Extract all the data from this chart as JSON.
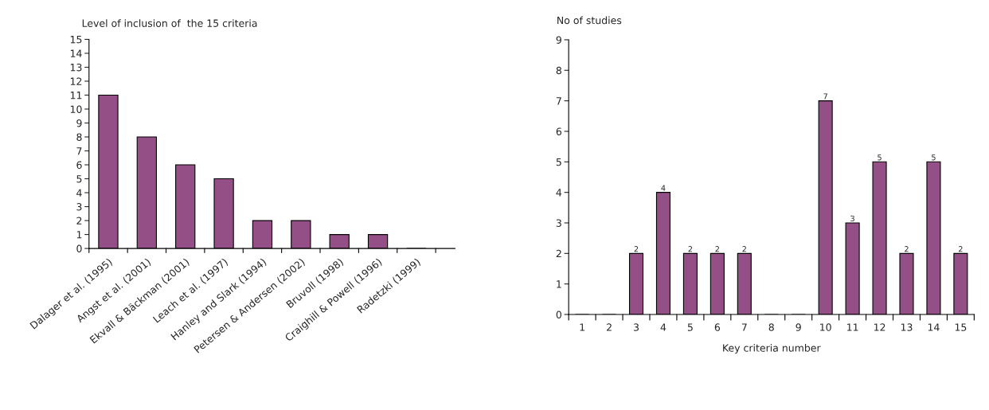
{
  "chart_data": [
    {
      "type": "bar",
      "ylabel": "Level of inclusion of  the 15 criteria",
      "categories": [
        "Dalager et al. (1995)",
        "Angst et al. (2001)",
        "Ekvall & Bäckman (2001)",
        "Leach et al. (1997)",
        "Hanley and Slark (1994)",
        "Petersen & Andersen (2002)",
        "Bruvoll (1998)",
        "Craighill & Powell (1996)",
        "Radetzki (1999)"
      ],
      "values": [
        11,
        8,
        6,
        5,
        2,
        2,
        1,
        1,
        0
      ],
      "color": "#954f87",
      "ylim": [
        0,
        15
      ],
      "yticks": [
        0,
        1,
        2,
        3,
        4,
        5,
        6,
        7,
        8,
        9,
        10,
        11,
        12,
        13,
        14,
        15
      ],
      "grid": false,
      "legend": false
    },
    {
      "type": "bar",
      "ylabel": "No of studies",
      "xlabel": "Key criteria number",
      "categories": [
        "1",
        "2",
        "3",
        "4",
        "5",
        "6",
        "7",
        "8",
        "9",
        "10",
        "11",
        "12",
        "13",
        "14",
        "15"
      ],
      "values": [
        0,
        0,
        2,
        4,
        2,
        2,
        2,
        0,
        0,
        7,
        3,
        5,
        2,
        5,
        2
      ],
      "value_labels": [
        null,
        null,
        "2",
        "4",
        "2",
        "2",
        "2",
        null,
        null,
        "7",
        "3",
        "5",
        "2",
        "5",
        "2"
      ],
      "color": "#954f87",
      "ylim": [
        0,
        9
      ],
      "yticks": [
        0,
        1,
        2,
        3,
        4,
        5,
        6,
        7,
        8,
        9
      ],
      "grid": false,
      "legend": false
    }
  ]
}
